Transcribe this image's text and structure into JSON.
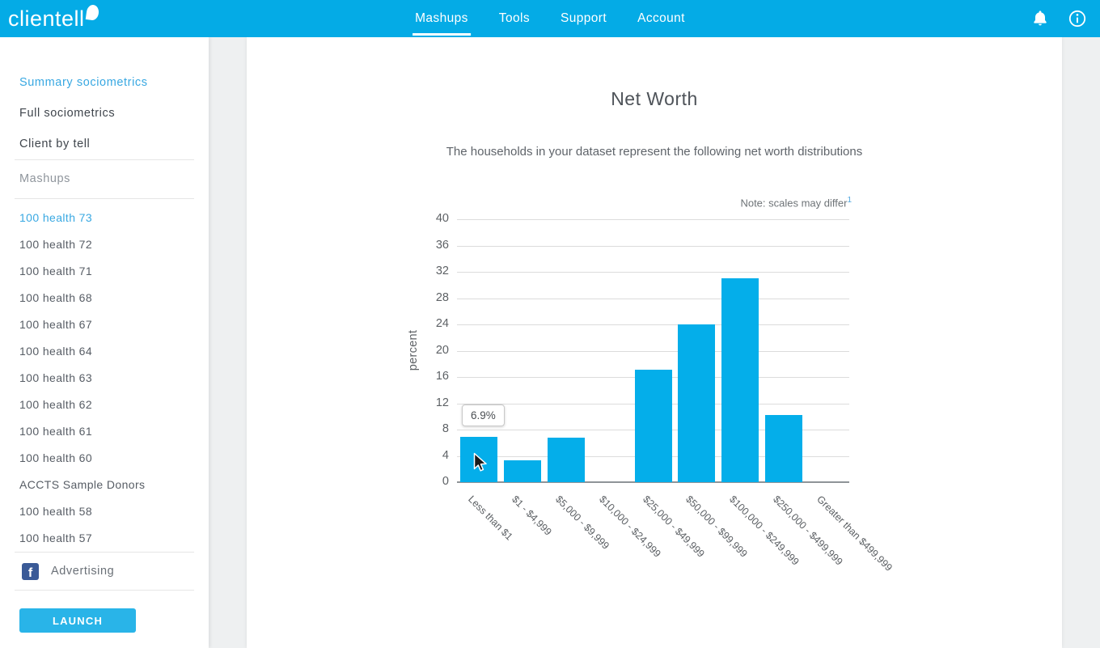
{
  "header": {
    "logo": "clientell",
    "nav": [
      {
        "label": "Mashups",
        "active": true
      },
      {
        "label": "Tools",
        "active": false
      },
      {
        "label": "Support",
        "active": false
      },
      {
        "label": "Account",
        "active": false
      }
    ]
  },
  "sidebar": {
    "top_links": [
      {
        "label": "Summary sociometrics",
        "active": true
      },
      {
        "label": "Full sociometrics",
        "active": false
      },
      {
        "label": "Client by tell",
        "active": false
      }
    ],
    "section_label": "Mashups",
    "mashup_links": [
      {
        "label": "100 health 73",
        "active": true
      },
      {
        "label": "100 health 72",
        "active": false
      },
      {
        "label": "100 health 71",
        "active": false
      },
      {
        "label": "100 health 68",
        "active": false
      },
      {
        "label": "100 health 67",
        "active": false
      },
      {
        "label": "100 health 64",
        "active": false
      },
      {
        "label": "100 health 63",
        "active": false
      },
      {
        "label": "100 health 62",
        "active": false
      },
      {
        "label": "100 health 61",
        "active": false
      },
      {
        "label": "100 health 60",
        "active": false
      },
      {
        "label": "ACCTS Sample Donors",
        "active": false
      },
      {
        "label": "100 health 58",
        "active": false
      },
      {
        "label": "100 health 57",
        "active": false
      }
    ],
    "advertising_label": "Advertising",
    "facebook_icon_letter": "f",
    "launch_button_label": "LAUNCH"
  },
  "main": {
    "title": "Net Worth",
    "subtitle": "The households in your dataset represent the following net worth distributions",
    "note_text": "Note: scales may differ",
    "note_superscript": "1",
    "tooltip_value": "6.9%"
  },
  "chart_data": {
    "type": "bar",
    "title": "Net Worth",
    "xlabel": "",
    "ylabel": "percent",
    "ylim": [
      0,
      40
    ],
    "yticks": [
      0,
      4,
      8,
      12,
      16,
      20,
      24,
      28,
      32,
      36,
      40
    ],
    "grid": true,
    "legend": "none",
    "categories": [
      "Less than $1",
      "$1 - $4,999",
      "$5,000 - $9,999",
      "$10,000 - $24,999",
      "$25,000 - $49,999",
      "$50,000 - $99,999",
      "$100,000 - $249,999",
      "$250,000 - $499,999",
      "Greater than $499,999"
    ],
    "values": [
      6.9,
      3.3,
      6.8,
      0,
      17.1,
      24,
      31,
      10.2,
      0
    ],
    "hovered_category": "Less than $1",
    "hovered_value_label": "6.9%",
    "bar_color": "#04aeea"
  },
  "colors": {
    "header_bg": "#04abe6",
    "accent_blue": "#38a8e2",
    "bar_color": "#04aeea",
    "launch_bg": "#29b4e8",
    "facebook_blue": "#3a5a97"
  }
}
